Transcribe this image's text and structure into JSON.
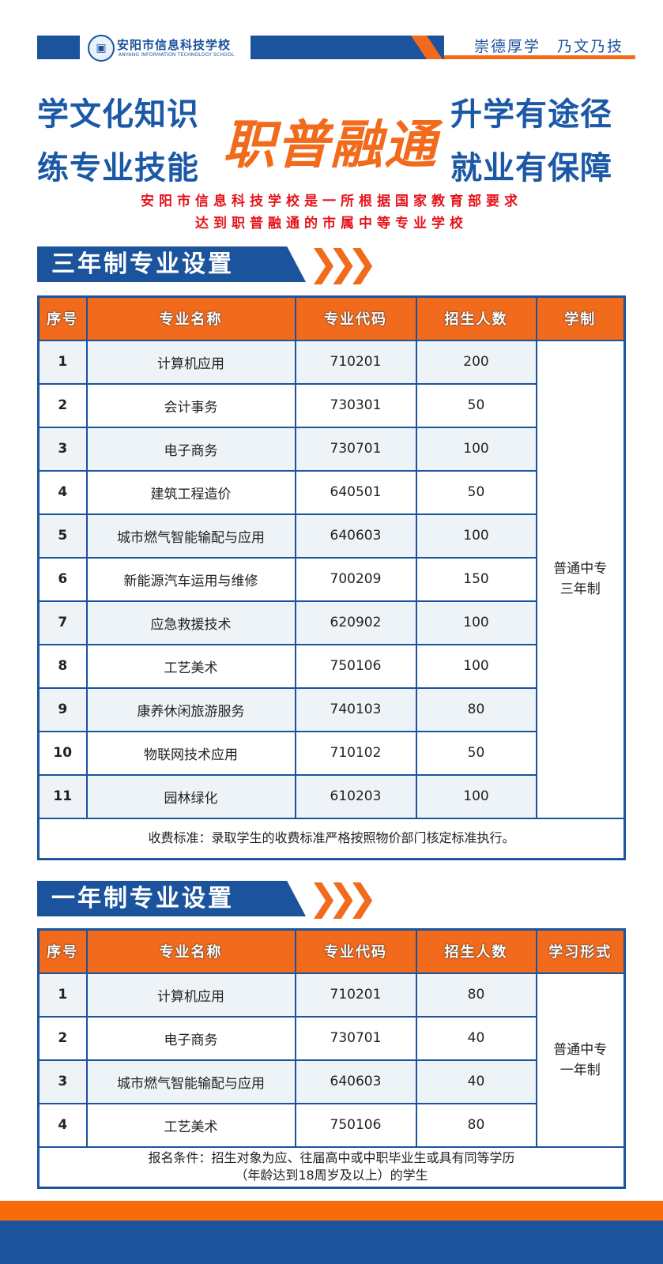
{
  "header": {
    "school_cn": "安阳市信息科技学校",
    "school_en": "ANYANG INFORMATION TECHNOLOGY SCHOOL",
    "motto": "崇德厚学　乃文乃技"
  },
  "hero": {
    "left_1": "学文化知识",
    "left_2": "练专业技能",
    "center": "职普融通",
    "right_1": "升学有途径",
    "right_2": "就业有保障",
    "sub_1": "安阳市信息科技学校是一所根据国家教育部要求",
    "sub_2": "达到职普融通的市属中等专业学校"
  },
  "colors": {
    "blue": "#1b539c",
    "orange": "#f26a1b",
    "red": "#e6131a"
  },
  "three_year": {
    "title": "三年制专业设置",
    "headers": [
      "序号",
      "专业名称",
      "专业代码",
      "招生人数",
      "学制"
    ],
    "rows": [
      [
        "1",
        "计算机应用",
        "710201",
        "200"
      ],
      [
        "2",
        "会计事务",
        "730301",
        "50"
      ],
      [
        "3",
        "电子商务",
        "730701",
        "100"
      ],
      [
        "4",
        "建筑工程造价",
        "640501",
        "50"
      ],
      [
        "5",
        "城市燃气智能输配与应用",
        "640603",
        "100"
      ],
      [
        "6",
        "新能源汽车运用与维修",
        "700209",
        "150"
      ],
      [
        "7",
        "应急救援技术",
        "620902",
        "100"
      ],
      [
        "8",
        "工艺美术",
        "750106",
        "100"
      ],
      [
        "9",
        "康养休闲旅游服务",
        "740103",
        "80"
      ],
      [
        "10",
        "物联网技术应用",
        "710102",
        "50"
      ],
      [
        "11",
        "园林绿化",
        "610203",
        "100"
      ]
    ],
    "system_1": "普通中专",
    "system_2": "三年制",
    "note": "收费标准：录取学生的收费标准严格按照物价部门核定标准执行。"
  },
  "one_year": {
    "title": "一年制专业设置",
    "headers": [
      "序号",
      "专业名称",
      "专业代码",
      "招生人数",
      "学习形式"
    ],
    "rows": [
      [
        "1",
        "计算机应用",
        "710201",
        "80"
      ],
      [
        "2",
        "电子商务",
        "730701",
        "40"
      ],
      [
        "3",
        "城市燃气智能输配与应用",
        "640603",
        "40"
      ],
      [
        "4",
        "工艺美术",
        "750106",
        "80"
      ]
    ],
    "system_1": "普通中专",
    "system_2": "一年制",
    "note_1": "报名条件：招生对象为应、往届高中或中职毕业生或具有同等学历",
    "note_2": "（年龄达到18周岁及以上）的学生"
  }
}
